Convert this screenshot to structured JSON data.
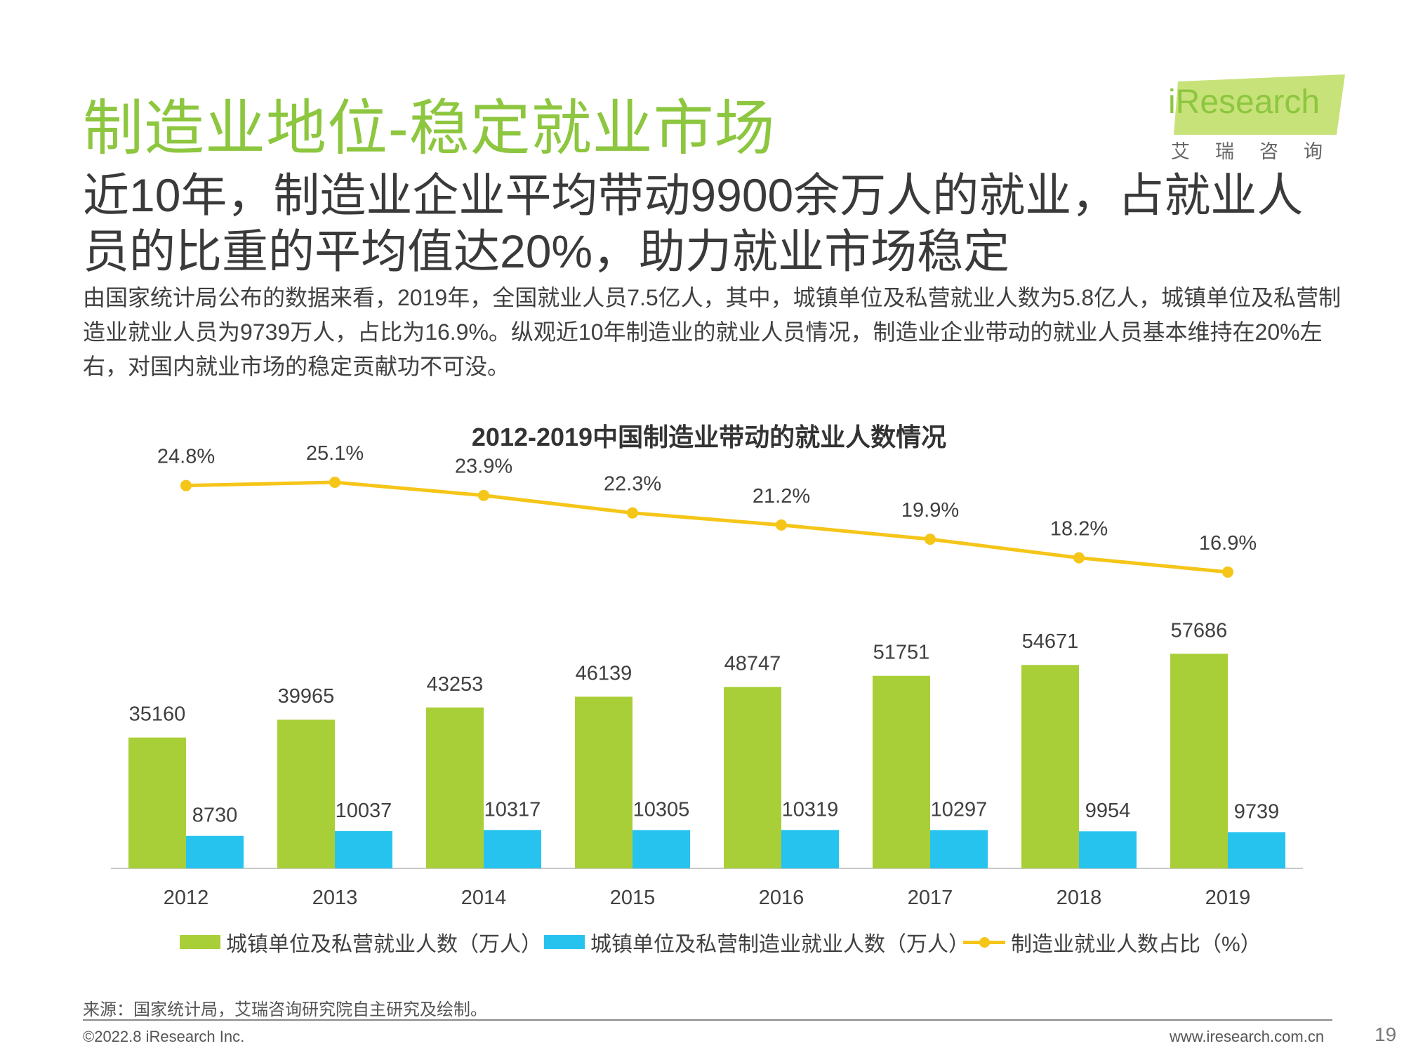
{
  "page": {
    "title": "制造业地位-稳定就业市场",
    "headline": "近10年，制造业企业平均带动9900余万人的就业，占就业人员的比重的平均值达20%，助力就业市场稳定",
    "body": "由国家统计局公布的数据来看，2019年，全国就业人员7.5亿人，其中，城镇单位及私营就业人数为5.8亿人，城镇单位及私营制造业就业人员为9739万人，占比为16.9%。纵观近10年制造业的就业人员情况，制造业企业带动的就业人员基本维持在20%左右，对国内就业市场的稳定贡献功不可没。",
    "source": "来源：国家统计局，艾瑞咨询研究院自主研究及绘制。",
    "copyright": "©2022.8 iResearch Inc.",
    "website": "www.iresearch.com.cn",
    "page_number": "19"
  },
  "logo": {
    "name": "iResearch",
    "subtitle": "艾瑞咨询"
  },
  "colors": {
    "title_green": "#8dc63f",
    "bar_green": "#a9cf38",
    "bar_blue": "#27c3ef",
    "line_yellow": "#f5c518"
  },
  "chart_data": {
    "type": "bar",
    "title": "2012-2019中国制造业带动的就业人数情况",
    "categories": [
      "2012",
      "2013",
      "2014",
      "2015",
      "2016",
      "2017",
      "2018",
      "2019"
    ],
    "series": [
      {
        "name": "城镇单位及私营就业人数（万人）",
        "type": "bar",
        "color": "#a9cf38",
        "values": [
          35160,
          39965,
          43253,
          46139,
          48747,
          51751,
          54671,
          57686
        ]
      },
      {
        "name": "城镇单位及私营制造业就业人数（万人）",
        "type": "bar",
        "color": "#27c3ef",
        "values": [
          8730,
          10037,
          10317,
          10305,
          10319,
          10297,
          9954,
          9739
        ]
      },
      {
        "name": "制造业就业人数占比（%）",
        "type": "line",
        "color": "#f5c518",
        "values": [
          24.8,
          25.1,
          23.9,
          22.3,
          21.2,
          19.9,
          18.2,
          16.9
        ],
        "labels": [
          "24.8%",
          "25.1%",
          "23.9%",
          "22.3%",
          "21.2%",
          "19.9%",
          "18.2%",
          "16.9%"
        ]
      }
    ],
    "xlabel": "",
    "ylabel": "",
    "grid": false,
    "legend": "bottom"
  }
}
